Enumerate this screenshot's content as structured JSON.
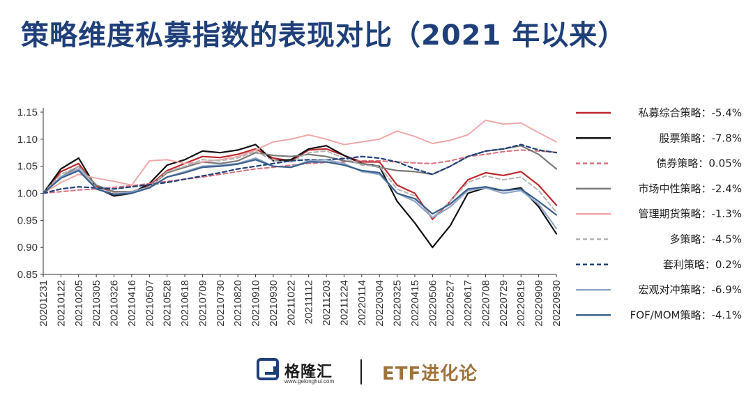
{
  "title": "策略维度私募指数的表现对比（2021 年以来）",
  "footer": {
    "logo_text": "格隆汇",
    "logo_url": "www.gelonghui.com",
    "brand_text": "ETF进化论",
    "brand_color": "#a0723c"
  },
  "chart_data": {
    "type": "line",
    "title": "策略维度私募指数的表现对比（2021 年以来）",
    "xlabel": "",
    "ylabel": "",
    "ylim": [
      0.85,
      1.15
    ],
    "yticks": [
      "1.15",
      "1.10",
      "1.05",
      "1.00",
      "0.95",
      "0.90",
      "0.85"
    ],
    "grid": false,
    "legend_position": "right",
    "x": [
      "20201231",
      "20210122",
      "20210205",
      "20210305",
      "20210326",
      "20210416",
      "20210507",
      "20210528",
      "20210618",
      "20210709",
      "20210730",
      "20210820",
      "20210910",
      "20210930",
      "20211022",
      "20211112",
      "20211203",
      "20211224",
      "20220114",
      "20220304",
      "20220325",
      "20220415",
      "20220506",
      "20220527",
      "20220617",
      "20220708",
      "20220729",
      "20220819",
      "20220909",
      "20220930"
    ],
    "series": [
      {
        "name": "私募综合策略：-5.4%",
        "color": "#c0282d",
        "dash": "solid",
        "width": 2.2,
        "values": [
          1.0,
          1.04,
          1.055,
          1.012,
          1.003,
          1.002,
          1.014,
          1.042,
          1.055,
          1.068,
          1.066,
          1.072,
          1.082,
          1.065,
          1.06,
          1.08,
          1.082,
          1.07,
          1.058,
          1.058,
          1.015,
          1.0,
          0.952,
          0.985,
          1.025,
          1.038,
          1.033,
          1.04,
          1.015,
          0.978
        ]
      },
      {
        "name": "股票策略：-7.8%",
        "color": "#111111",
        "dash": "solid",
        "width": 2.2,
        "values": [
          1.0,
          1.045,
          1.065,
          1.01,
          0.995,
          1.0,
          1.018,
          1.052,
          1.062,
          1.078,
          1.075,
          1.08,
          1.09,
          1.06,
          1.062,
          1.082,
          1.088,
          1.07,
          1.055,
          1.05,
          0.985,
          0.945,
          0.9,
          0.94,
          1.0,
          1.01,
          1.005,
          1.01,
          0.975,
          0.925
        ]
      },
      {
        "name": "债券策略：0.05%",
        "color": "#d9707e",
        "dash": "6,4",
        "width": 2,
        "values": [
          1.0,
          1.003,
          1.006,
          1.008,
          1.011,
          1.014,
          1.018,
          1.022,
          1.026,
          1.03,
          1.035,
          1.04,
          1.045,
          1.048,
          1.052,
          1.055,
          1.057,
          1.058,
          1.06,
          1.06,
          1.058,
          1.056,
          1.055,
          1.06,
          1.068,
          1.072,
          1.077,
          1.08,
          1.078,
          1.076
        ]
      },
      {
        "name": "市场中性策略：-2.4%",
        "color": "#7a7a7a",
        "dash": "solid",
        "width": 2.2,
        "values": [
          1.0,
          1.03,
          1.05,
          1.015,
          1.003,
          1.003,
          1.012,
          1.038,
          1.048,
          1.058,
          1.055,
          1.06,
          1.075,
          1.07,
          1.068,
          1.072,
          1.068,
          1.06,
          1.055,
          1.048,
          1.042,
          1.04,
          1.035,
          1.05,
          1.068,
          1.078,
          1.082,
          1.088,
          1.072,
          1.045
        ]
      },
      {
        "name": "管理期货策略：-1.3%",
        "color": "#f0a8a8",
        "dash": "solid",
        "width": 2,
        "values": [
          1.0,
          1.02,
          1.035,
          1.028,
          1.022,
          1.015,
          1.06,
          1.062,
          1.055,
          1.058,
          1.062,
          1.068,
          1.08,
          1.095,
          1.1,
          1.108,
          1.1,
          1.09,
          1.095,
          1.1,
          1.115,
          1.105,
          1.092,
          1.098,
          1.108,
          1.135,
          1.128,
          1.13,
          1.112,
          1.095
        ]
      },
      {
        "name": "多策略：-4.5%",
        "color": "#b4b4b4",
        "dash": "6,4",
        "width": 2,
        "values": [
          1.0,
          1.035,
          1.05,
          1.01,
          1.0,
          1.002,
          1.012,
          1.04,
          1.05,
          1.062,
          1.06,
          1.065,
          1.078,
          1.06,
          1.058,
          1.075,
          1.078,
          1.065,
          1.052,
          1.05,
          1.008,
          0.995,
          0.955,
          0.985,
          1.02,
          1.032,
          1.025,
          1.03,
          1.005,
          0.965
        ]
      },
      {
        "name": "套利策略：0.2%",
        "color": "#1f3f7a",
        "dash": "6,4",
        "width": 2.2,
        "values": [
          1.0,
          1.008,
          1.012,
          1.01,
          1.008,
          1.012,
          1.016,
          1.02,
          1.026,
          1.032,
          1.038,
          1.045,
          1.05,
          1.055,
          1.06,
          1.062,
          1.062,
          1.064,
          1.068,
          1.065,
          1.058,
          1.045,
          1.035,
          1.05,
          1.068,
          1.078,
          1.082,
          1.09,
          1.08,
          1.075
        ]
      },
      {
        "name": "宏观对冲策略：-6.9%",
        "color": "#8fa7c7",
        "dash": "solid",
        "width": 2.2,
        "values": [
          1.0,
          1.03,
          1.045,
          1.008,
          0.998,
          1.002,
          1.01,
          1.03,
          1.04,
          1.05,
          1.052,
          1.055,
          1.065,
          1.05,
          1.048,
          1.06,
          1.062,
          1.055,
          1.04,
          1.035,
          1.0,
          0.985,
          0.955,
          0.975,
          1.005,
          1.01,
          1.0,
          1.005,
          0.98,
          0.935
        ]
      },
      {
        "name": "FOF/MOM策略：-4.1%",
        "color": "#3a5f8c",
        "dash": "solid",
        "width": 2.2,
        "values": [
          1.0,
          1.028,
          1.042,
          1.008,
          0.998,
          1.0,
          1.01,
          1.03,
          1.038,
          1.048,
          1.05,
          1.054,
          1.062,
          1.05,
          1.048,
          1.058,
          1.058,
          1.052,
          1.042,
          1.038,
          1.0,
          0.99,
          0.962,
          0.98,
          1.008,
          1.012,
          1.005,
          1.008,
          0.985,
          0.96
        ]
      }
    ]
  }
}
